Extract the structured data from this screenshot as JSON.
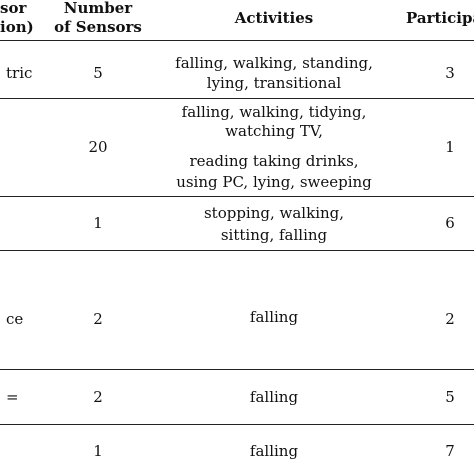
{
  "header": {
    "sensor_line1": "sor",
    "sensor_line2": "ion)",
    "number_line1": "Number",
    "number_line2": "of Sensors",
    "activities": "Activities",
    "participants": "Participa"
  },
  "rows": [
    {
      "sensor": "tric",
      "number": "5",
      "activities": [
        "falling, walking, standing,",
        "lying, transitional"
      ],
      "participants": "3"
    },
    {
      "sensor": "",
      "number": "20",
      "activities": [
        "falling, walking, tidying,",
        "watching TV,",
        "reading taking drinks,",
        "using PC, lying, sweeping"
      ],
      "participants": "1"
    },
    {
      "sensor": "",
      "number": "1",
      "activities": [
        "stopping, walking,",
        "sitting, falling"
      ],
      "participants": "6"
    },
    {
      "sensor": "ce",
      "number": "2",
      "activities": [
        "falling"
      ],
      "participants": "2"
    },
    {
      "sensor": "=",
      "number": "2",
      "activities": [
        "falling"
      ],
      "participants": "5"
    },
    {
      "sensor": "",
      "number": "1",
      "activities": [
        "falling"
      ],
      "participants": "7"
    }
  ]
}
